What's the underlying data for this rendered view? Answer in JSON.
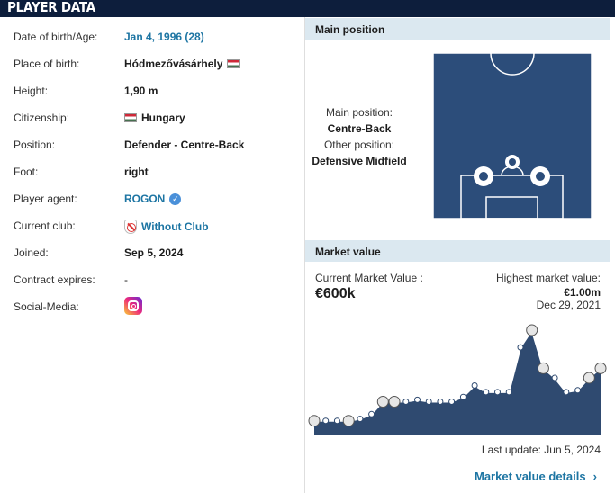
{
  "header": {
    "title": "PLAYER DATA"
  },
  "player_info": {
    "rows": [
      {
        "label": "Date of birth/Age:",
        "value": "Jan 4, 1996 (28)"
      },
      {
        "label": "Place of birth:",
        "value": "Hódmezővásárhely"
      },
      {
        "label": "Height:",
        "value": "1,90 m"
      },
      {
        "label": "Citizenship:",
        "value": "Hungary"
      },
      {
        "label": "Position:",
        "value": "Defender - Centre-Back"
      },
      {
        "label": "Foot:",
        "value": "right"
      },
      {
        "label": "Player agent:",
        "value": "ROGON"
      },
      {
        "label": "Current club:",
        "value": "Without Club"
      },
      {
        "label": "Joined:",
        "value": "Sep 5, 2024"
      },
      {
        "label": "Contract expires:",
        "value": "-"
      },
      {
        "label": "Social-Media:",
        "value": ""
      }
    ]
  },
  "main_position": {
    "title": "Main position",
    "main_label": "Main position:",
    "main_value": "Centre-Back",
    "other_label": "Other position:",
    "other_value": "Defensive Midfield"
  },
  "market_value": {
    "title": "Market value",
    "current_label": "Current Market Value :",
    "current_value": "€600k",
    "highest_label": "Highest market value:",
    "highest_value": "€1.00m",
    "highest_date": "Dec 29, 2021",
    "last_update": "Last update: Jun 5, 2024",
    "details_link": "Market value details",
    "chevron": "›"
  },
  "colors": {
    "header": "#0d1e3c",
    "pitch": "#2c4d7a",
    "chart_fill": "#2f4a70",
    "link": "#1d75a3",
    "box_head": "#dbe8f0"
  },
  "chart_data": {
    "type": "area",
    "values": [
      0.05,
      0.05,
      0.05,
      0.05,
      0.07,
      0.12,
      0.25,
      0.25,
      0.25,
      0.27,
      0.25,
      0.25,
      0.25,
      0.3,
      0.42,
      0.35,
      0.35,
      0.35,
      0.82,
      1.0,
      0.6,
      0.5,
      0.35,
      0.37,
      0.5,
      0.6
    ],
    "title": "",
    "xlabel": "",
    "ylabel": ""
  }
}
